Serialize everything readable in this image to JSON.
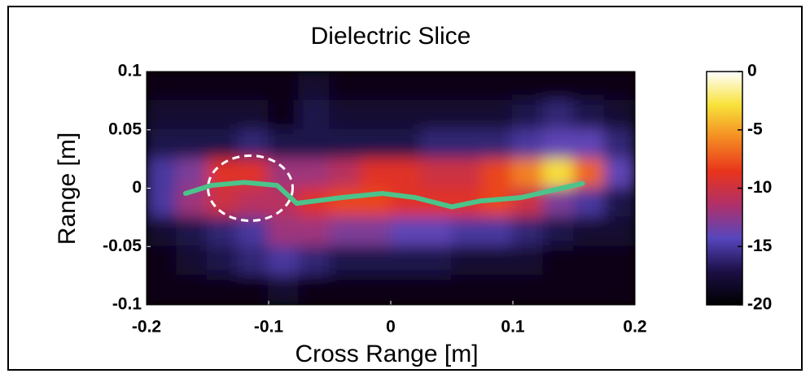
{
  "chart_data": {
    "type": "heatmap",
    "title": "Dielectric Slice",
    "x_label": "Cross Range [m]",
    "y_label": "Range [m]",
    "xlim": [
      -0.2,
      0.2
    ],
    "xticks": [
      -0.2,
      -0.1,
      0,
      0.1,
      0.2
    ],
    "ylim": [
      -0.1,
      0.1
    ],
    "yticks": [
      0.1,
      0.05,
      0,
      -0.05,
      -0.1
    ],
    "clim": [
      -20,
      0
    ],
    "cticks": [
      0,
      -5,
      -10,
      -15,
      -20
    ],
    "colormap": [
      "#000000",
      "#1c0f45",
      "#5646bd",
      "#b0306a",
      "#e8341c",
      "#f48a22",
      "#f8e23a",
      "#ffffff"
    ],
    "z": [
      [
        -19,
        -19,
        -19,
        -19,
        -19,
        -18,
        -19,
        -19,
        -19,
        -19,
        -19,
        -19,
        -19,
        -19,
        -19,
        -19
      ],
      [
        -18,
        -18,
        -18,
        -18,
        -19,
        -17,
        -18,
        -18,
        -18,
        -18,
        -18,
        -18,
        -17,
        -16,
        -17,
        -18
      ],
      [
        -17,
        -17,
        -17,
        -16,
        -17,
        -17,
        -17,
        -17,
        -17,
        -16,
        -16,
        -16,
        -15,
        -14,
        -14,
        -16
      ],
      [
        -15,
        -13,
        -9,
        -9,
        -12,
        -12,
        -11,
        -9,
        -9,
        -10,
        -10,
        -8,
        -6,
        -3,
        -7,
        -14
      ],
      [
        -15,
        -12,
        -10,
        -11,
        -11,
        -9,
        -8,
        -8,
        -9,
        -9,
        -9,
        -8,
        -10,
        -13,
        -15,
        -17
      ],
      [
        -18,
        -17,
        -16,
        -15,
        -12,
        -12,
        -13,
        -13,
        -14,
        -14,
        -15,
        -15,
        -16,
        -17,
        -18,
        -18
      ],
      [
        -19,
        -18,
        -17,
        -16,
        -15,
        -16,
        -17,
        -17,
        -17,
        -17,
        -18,
        -18,
        -18,
        -19,
        -19,
        -19
      ],
      [
        -19,
        -19,
        -19,
        -19,
        -18,
        -19,
        -19,
        -19,
        -19,
        -19,
        -19,
        -19,
        -19,
        -19,
        -19,
        -19
      ]
    ],
    "line": {
      "color": "#4cc38a",
      "x": [
        -0.168,
        -0.147,
        -0.12,
        -0.093,
        -0.077,
        -0.04,
        -0.007,
        0.02,
        0.05,
        0.073,
        0.107,
        0.14,
        0.157
      ],
      "values": [
        -0.0045,
        0.0024,
        0.005,
        0.0024,
        -0.013,
        -0.008,
        -0.0045,
        -0.008,
        -0.016,
        -0.011,
        -0.008,
        0,
        0.004
      ]
    }
  }
}
